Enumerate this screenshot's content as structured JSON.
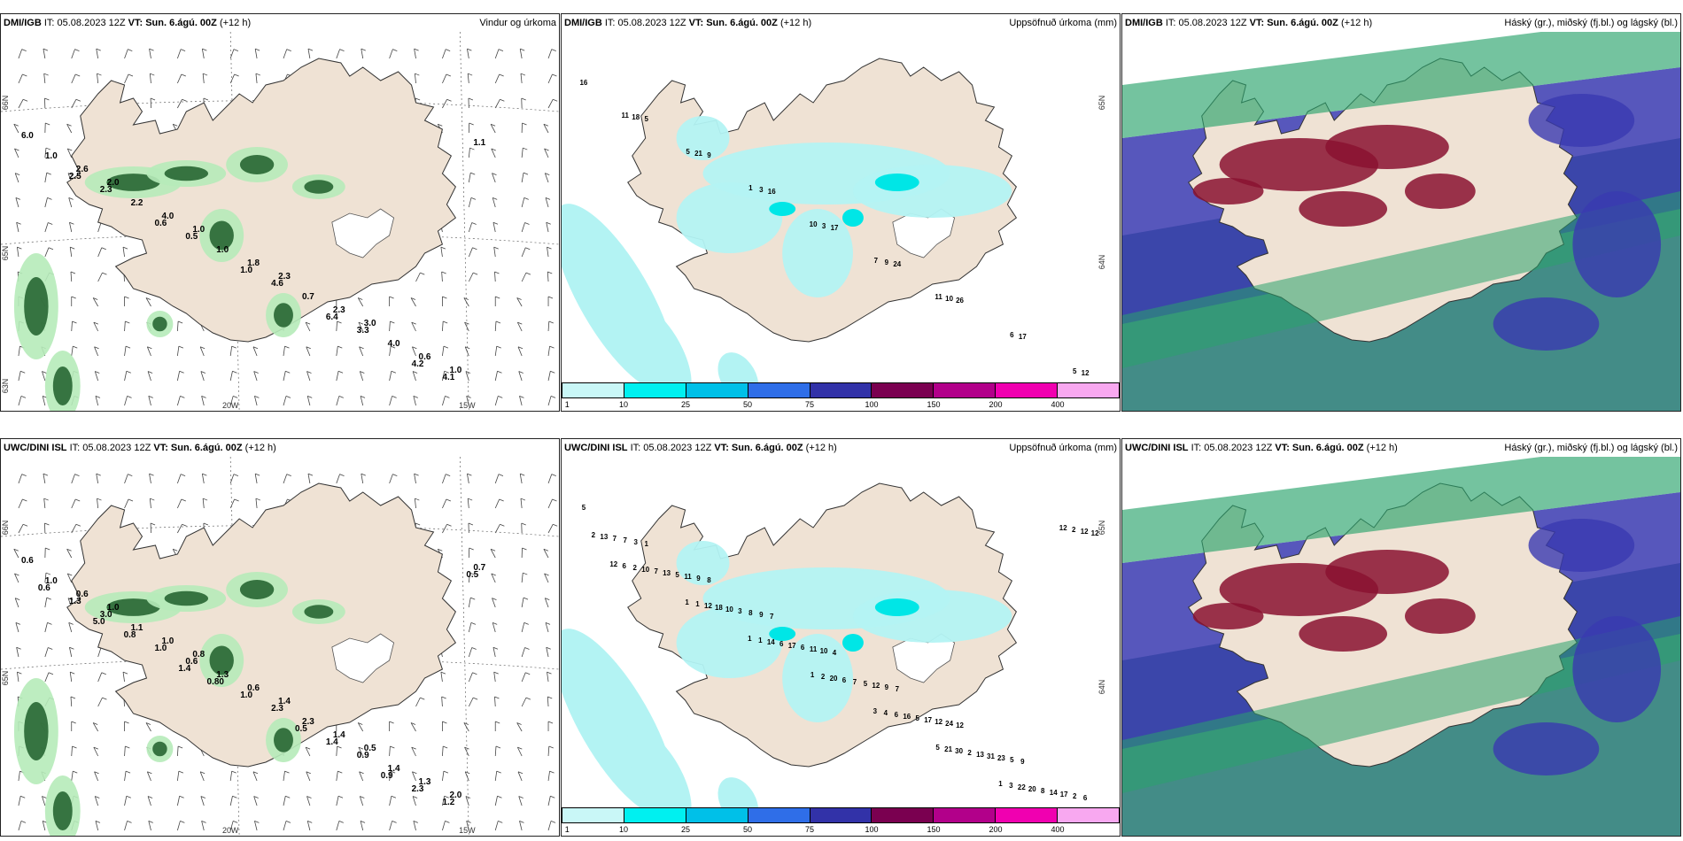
{
  "panels": [
    {
      "id": "p1",
      "model": "DMI/IGB",
      "it": "IT: 05.08.2023 12Z",
      "vt": "VT: Sun. 6.ágú. 00Z",
      "offset": "(+12 h)",
      "title": "Vindur og úrkoma",
      "type": "wind",
      "labels": [
        "6.0",
        "2.0",
        "1.0",
        "2.3",
        "3.0",
        "1.0",
        "2.6",
        "4.0",
        "1.8",
        "2.3",
        "0.6",
        "1.0",
        "2.2",
        "1.0",
        "0.7",
        "4.0",
        "1.1",
        "2.3",
        "0.5",
        "4.6",
        "3.3",
        "4.1",
        "2.5",
        "0.6",
        "1.0",
        "6.4",
        "4.2"
      ],
      "axis": [
        "66N",
        "65N",
        "20W",
        "15W",
        "63N"
      ]
    },
    {
      "id": "p2",
      "model": "DMI/IGB",
      "it": "IT: 05.08.2023 12Z",
      "vt": "VT: Sun. 6.ágú. 00Z",
      "offset": "(+12 h)",
      "title": "Uppsöfnuð úrkoma (mm)",
      "type": "precip",
      "labels": [
        "16",
        "5",
        "9",
        "16",
        "17",
        "24",
        "26",
        "17",
        "12",
        "18",
        "21",
        "3",
        "3",
        "9",
        "10",
        "6",
        "5",
        "11",
        "5",
        "1",
        "10",
        "7",
        "11"
      ],
      "axis": [
        "65N",
        "64N"
      ]
    },
    {
      "id": "p3",
      "model": "DMI/IGB",
      "it": "IT: 05.08.2023 12Z",
      "vt": "VT: Sun. 6.ágú. 00Z",
      "offset": "(+12 h)",
      "title": "Háský (gr.), miðský (fj.bl.) og lágský (bl.)",
      "type": "cloud"
    },
    {
      "id": "p4",
      "model": "UWC/DINI ISL",
      "it": "IT: 05.08.2023 12Z",
      "vt": "VT: Sun. 6.ágú. 00Z",
      "offset": "(+12 h)",
      "title": "",
      "type": "wind",
      "labels": [
        "0.6",
        "1.0",
        "0.8",
        "1.4",
        "0.5",
        "2.0",
        "0.6",
        "1.0",
        "0.6",
        "1.4",
        "1.3",
        "1.0",
        "1.1",
        "1.3",
        "2.3",
        "1.4",
        "0.7",
        "3.0",
        "0.6",
        "2.3",
        "0.9",
        "1.2",
        "1.3",
        "1.0",
        "1.0",
        "1.4",
        "2.3",
        "0.6",
        "0.8",
        "0.80",
        "0.5",
        "0.9",
        "0.5",
        "5.0",
        "1.4"
      ],
      "axis": [
        "66N",
        "65N",
        "20W",
        "15W"
      ]
    },
    {
      "id": "p5",
      "model": "UWC/DINI ISL",
      "it": "IT: 05.08.2023 12Z",
      "vt": "VT: Sun. 6.ágú. 00Z",
      "offset": "(+12 h)",
      "title": "Uppsöfnuð úrkoma (mm)",
      "type": "precip",
      "labels": [
        "5",
        "1",
        "8",
        "7",
        "4",
        "7",
        "12",
        "9",
        "6",
        "3",
        "9",
        "9",
        "10",
        "9",
        "24",
        "5",
        "2",
        "7",
        "11",
        "8",
        "11",
        "12",
        "12",
        "23",
        "17",
        "7",
        "5",
        "3",
        "6",
        "5",
        "17",
        "31",
        "14",
        "13",
        "13",
        "10",
        "17",
        "7",
        "5",
        "13",
        "8",
        "2",
        "7",
        "18",
        "6",
        "6",
        "16",
        "2",
        "20",
        "12",
        "10",
        "12",
        "14",
        "20",
        "6",
        "30",
        "22",
        "12",
        "2",
        "1",
        "1",
        "2",
        "4",
        "21",
        "3",
        "2",
        "6",
        "1",
        "1",
        "1",
        "3",
        "5",
        "1",
        "12",
        "12"
      ],
      "axis": [
        "65N",
        "64N"
      ]
    },
    {
      "id": "p6",
      "model": "UWC/DINI ISL",
      "it": "IT: 05.08.2023 12Z",
      "vt": "VT: Sun. 6.ágú. 00Z",
      "offset": "(+12 h)",
      "title": "Háský (gr.), miðský (fj.bl.) og lágský (bl.)",
      "type": "cloud"
    }
  ],
  "colorbar": {
    "labels": [
      "1",
      "10",
      "25",
      "50",
      "75",
      "100",
      "150",
      "200",
      "400"
    ],
    "colors": [
      "#c9f7f7",
      "#00f0f0",
      "#00c0e8",
      "#2f6ee8",
      "#3232a8",
      "#7a0050",
      "#b2008a",
      "#f000b0",
      "#f8a8f0"
    ]
  },
  "colors": {
    "land": "#efe2d4",
    "precip_light": "#b3f3f3",
    "precip_mid": "#00e6e6",
    "wind_green_light": "#b6ebb9",
    "wind_green_dark": "#1f5e2a",
    "cloud_high": "#2aa36b",
    "cloud_mid": "#3a3ab0",
    "cloud_low": "#8a1230",
    "ocean_cloud": "#2f7f7a"
  }
}
